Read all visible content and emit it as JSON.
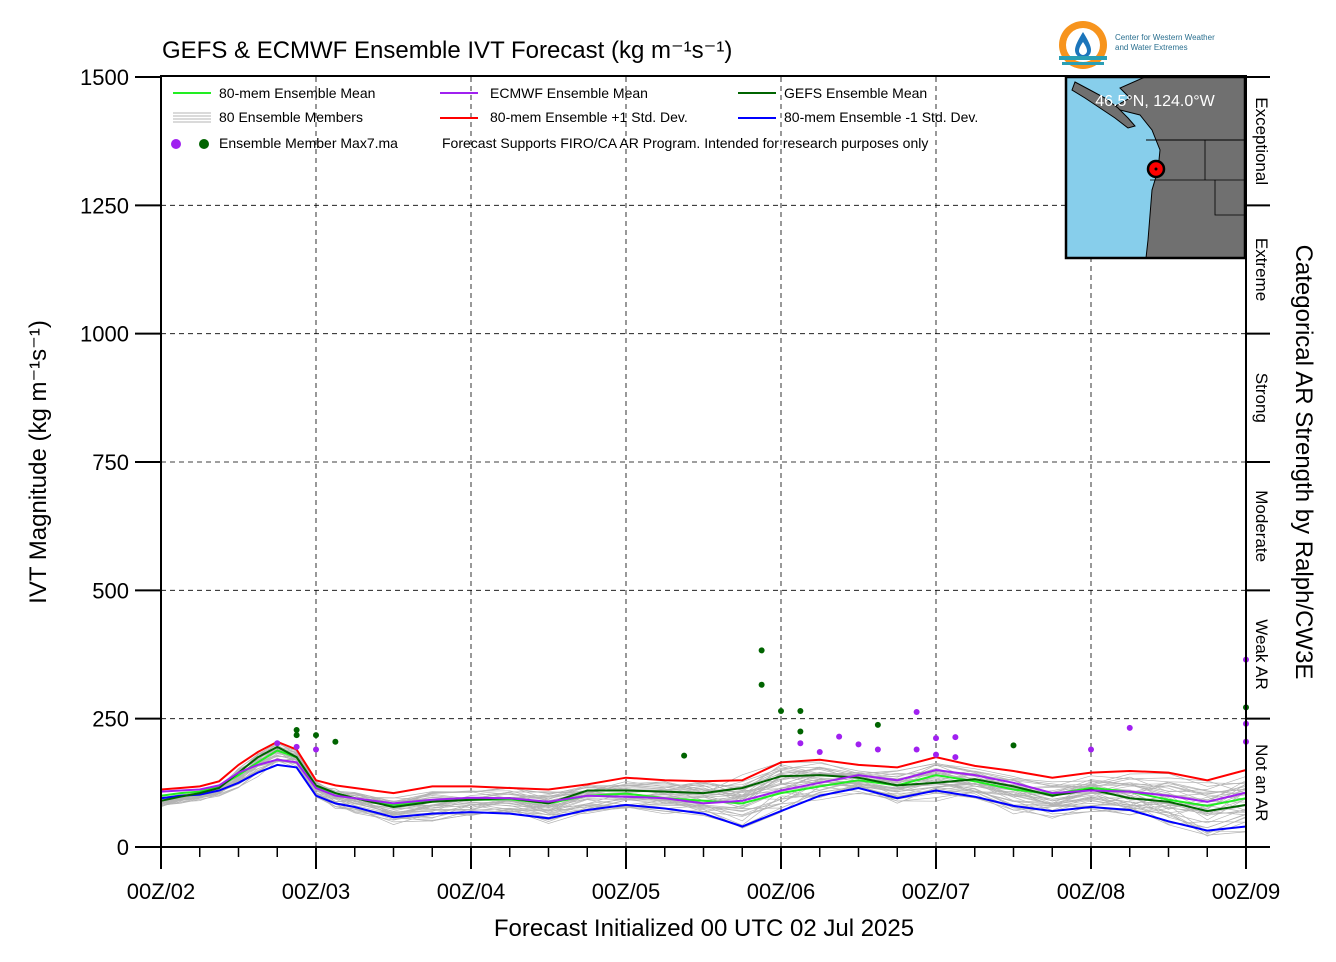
{
  "chart_data": {
    "type": "line",
    "title": "GEFS & ECMWF Ensemble IVT Forecast (kg m⁻¹s⁻¹)",
    "xlabel": "Forecast Initialized 00 UTC 02 Jul 2025",
    "ylabel": "IVT Magnitude (kg m⁻¹s⁻¹)",
    "right_axis_label": "Categorical AR Strength by Ralph/CW3E",
    "ylim": [
      0,
      1500
    ],
    "yticks": [
      "0",
      "250",
      "500",
      "750",
      "1000",
      "1250",
      "1500"
    ],
    "xlim_days": [
      0,
      7
    ],
    "xticks": [
      "00Z/02",
      "00Z/03",
      "00Z/04",
      "00Z/05",
      "00Z/06",
      "00Z/07",
      "00Z/08",
      "00Z/09"
    ],
    "grid": true,
    "legend_position": "top-left",
    "categories": [
      {
        "label": "Not an AR",
        "from": 0,
        "to": 250
      },
      {
        "label": "Weak AR",
        "from": 250,
        "to": 500
      },
      {
        "label": "Moderate",
        "from": 500,
        "to": 750
      },
      {
        "label": "Strong",
        "from": 750,
        "to": 1000
      },
      {
        "label": "Extreme",
        "from": 1000,
        "to": 1250
      },
      {
        "label": "Exceptional",
        "from": 1250,
        "to": 1500
      }
    ],
    "legend": {
      "ens_mean": "80-mem Ensemble Mean",
      "members": "80 Ensemble Members",
      "max_dots": "Ensemble Member Max7.ma",
      "ecmwf_mean": "ECMWF Ensemble Mean",
      "plus_std": "80-mem Ensemble +1 Std. Dev.",
      "note": "Forecast Supports FIRO/CA AR Program. Intended for research purposes only",
      "gefs_mean": "GEFS Ensemble Mean",
      "minus_std": "80-mem Ensemble -1 Std. Dev."
    },
    "series": [
      {
        "name": "80-mem Ensemble Mean",
        "color": "#22ee22",
        "x": [
          0,
          0.125,
          0.25,
          0.375,
          0.5,
          0.625,
          0.75,
          0.875,
          1,
          1.125,
          1.25,
          1.5,
          1.75,
          2,
          2.25,
          2.5,
          2.75,
          3,
          3.25,
          3.5,
          3.75,
          4,
          4.25,
          4.5,
          4.75,
          5,
          5.25,
          5.5,
          5.75,
          6,
          6.25,
          6.5,
          6.75,
          7
        ],
        "values": [
          100,
          105,
          108,
          118,
          140,
          165,
          188,
          175,
          118,
          105,
          95,
          82,
          90,
          92,
          93,
          85,
          100,
          104,
          95,
          90,
          85,
          105,
          118,
          130,
          120,
          140,
          128,
          112,
          103,
          115,
          108,
          92,
          80,
          95
        ]
      },
      {
        "name": "ECMWF Ensemble Mean",
        "color": "#a020f0",
        "x": [
          0,
          0.125,
          0.25,
          0.375,
          0.5,
          0.625,
          0.75,
          0.875,
          1,
          1.125,
          1.25,
          1.5,
          1.75,
          2,
          2.25,
          2.5,
          2.75,
          3,
          3.25,
          3.5,
          3.75,
          4,
          4.25,
          4.5,
          4.75,
          5,
          5.25,
          5.5,
          5.75,
          6,
          6.25,
          6.5,
          6.75,
          7
        ],
        "values": [
          108,
          110,
          112,
          120,
          145,
          160,
          170,
          165,
          115,
          100,
          95,
          85,
          92,
          96,
          95,
          88,
          100,
          98,
          95,
          85,
          90,
          110,
          125,
          140,
          130,
          150,
          140,
          125,
          105,
          110,
          108,
          100,
          88,
          106
        ]
      },
      {
        "name": "GEFS Ensemble Mean",
        "color": "#006400",
        "x": [
          0,
          0.125,
          0.25,
          0.375,
          0.5,
          0.625,
          0.75,
          0.875,
          1,
          1.125,
          1.25,
          1.5,
          1.75,
          2,
          2.25,
          2.5,
          2.75,
          3,
          3.25,
          3.5,
          3.75,
          4,
          4.25,
          4.5,
          4.75,
          5,
          5.25,
          5.5,
          5.75,
          6,
          6.25,
          6.5,
          6.75,
          7
        ],
        "values": [
          90,
          98,
          105,
          115,
          145,
          175,
          195,
          175,
          120,
          105,
          95,
          78,
          88,
          92,
          95,
          85,
          110,
          110,
          108,
          105,
          115,
          138,
          140,
          135,
          120,
          125,
          132,
          118,
          100,
          112,
          95,
          88,
          70,
          82
        ]
      },
      {
        "name": "80-mem Ensemble +1 Std. Dev.",
        "color": "#ff0000",
        "x": [
          0,
          0.125,
          0.25,
          0.375,
          0.5,
          0.625,
          0.75,
          0.875,
          1,
          1.125,
          1.25,
          1.5,
          1.75,
          2,
          2.25,
          2.5,
          2.75,
          3,
          3.25,
          3.5,
          3.75,
          4,
          4.25,
          4.5,
          4.75,
          5,
          5.25,
          5.5,
          5.75,
          6,
          6.25,
          6.5,
          6.75,
          7
        ],
        "values": [
          112,
          115,
          118,
          128,
          160,
          185,
          205,
          190,
          130,
          120,
          115,
          105,
          118,
          118,
          115,
          112,
          122,
          135,
          130,
          128,
          130,
          165,
          170,
          160,
          155,
          175,
          158,
          148,
          135,
          145,
          148,
          145,
          130,
          150
        ]
      },
      {
        "name": "80-mem Ensemble -1 Std. Dev.",
        "color": "#0000ff",
        "x": [
          0,
          0.125,
          0.25,
          0.375,
          0.5,
          0.625,
          0.75,
          0.875,
          1,
          1.125,
          1.25,
          1.5,
          1.75,
          2,
          2.25,
          2.5,
          2.75,
          3,
          3.25,
          3.5,
          3.75,
          4,
          4.25,
          4.5,
          4.75,
          5,
          5.25,
          5.5,
          5.75,
          6,
          6.25,
          6.5,
          6.75,
          7
        ],
        "values": [
          95,
          100,
          102,
          110,
          125,
          145,
          160,
          155,
          100,
          85,
          78,
          58,
          65,
          68,
          65,
          56,
          72,
          82,
          75,
          65,
          40,
          70,
          100,
          115,
          95,
          110,
          98,
          80,
          70,
          78,
          72,
          50,
          32,
          40
        ]
      },
      {
        "name": "80 Ensemble Members",
        "color": "#b4b4b4",
        "x": [
          0,
          0.125,
          0.25,
          0.375,
          0.5,
          0.625,
          0.75,
          0.875,
          1,
          1.125,
          1.25,
          1.5,
          1.75,
          2,
          2.25,
          2.5,
          2.75,
          3,
          3.25,
          3.5,
          3.75,
          4,
          4.25,
          4.5,
          4.75,
          5,
          5.25,
          5.5,
          5.75,
          6,
          6.25,
          6.5,
          6.75,
          7
        ],
        "values": [
          88,
          94,
          100,
          110,
          135,
          160,
          180,
          172,
          112,
          95,
          88,
          70,
          80,
          86,
          88,
          80,
          95,
          100,
          98,
          94,
          88,
          120,
          130,
          128,
          115,
          128,
          120,
          105,
          92,
          102,
          98,
          88,
          75,
          88
        ]
      }
    ],
    "max7_points": {
      "ecmwf": [
        {
          "x": 0.75,
          "y": 202
        },
        {
          "x": 0.875,
          "y": 195
        },
        {
          "x": 1.0,
          "y": 190
        },
        {
          "x": 4.125,
          "y": 202
        },
        {
          "x": 4.25,
          "y": 185
        },
        {
          "x": 4.375,
          "y": 215
        },
        {
          "x": 4.5,
          "y": 200
        },
        {
          "x": 4.625,
          "y": 190
        },
        {
          "x": 4.875,
          "y": 263
        },
        {
          "x": 4.875,
          "y": 190
        },
        {
          "x": 5.0,
          "y": 212
        },
        {
          "x": 5.125,
          "y": 214
        },
        {
          "x": 5.0,
          "y": 180
        },
        {
          "x": 5.125,
          "y": 175
        },
        {
          "x": 6.0,
          "y": 190
        },
        {
          "x": 6.25,
          "y": 232
        },
        {
          "x": 7.0,
          "y": 365
        },
        {
          "x": 7.0,
          "y": 240
        },
        {
          "x": 7.0,
          "y": 205
        }
      ],
      "gefs": [
        {
          "x": 0.875,
          "y": 228
        },
        {
          "x": 0.875,
          "y": 218
        },
        {
          "x": 1.0,
          "y": 218
        },
        {
          "x": 1.125,
          "y": 205
        },
        {
          "x": 3.375,
          "y": 178
        },
        {
          "x": 3.875,
          "y": 383
        },
        {
          "x": 3.875,
          "y": 316
        },
        {
          "x": 4.0,
          "y": 265
        },
        {
          "x": 4.125,
          "y": 265
        },
        {
          "x": 4.125,
          "y": 225
        },
        {
          "x": 4.625,
          "y": 238
        },
        {
          "x": 5.5,
          "y": 198
        },
        {
          "x": 7.0,
          "y": 272
        }
      ]
    }
  },
  "logo": {
    "line1": "Center for Western Weather",
    "line2": "and Water Extremes",
    "colors": {
      "orange": "#f7941d",
      "blue": "#1b75bb",
      "teal": "#2a9fb5"
    }
  },
  "inset_map": {
    "location_label": "46.5°N, 124.0°W",
    "ocean_color": "#87ceeb",
    "land_color": "#707070",
    "marker_color": "#ff0000"
  }
}
